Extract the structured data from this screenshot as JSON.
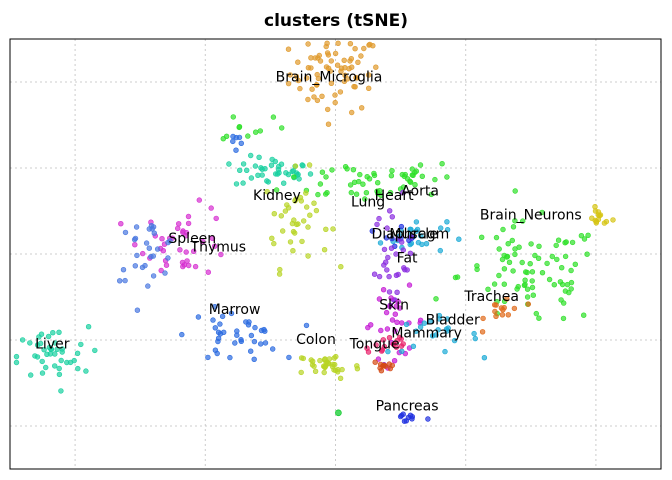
{
  "chart_data": {
    "type": "scatter",
    "title": "clusters (tSNE)",
    "xlabel": "",
    "ylabel": "",
    "xlim": [
      -50,
      50
    ],
    "ylim": [
      -50,
      50
    ],
    "grid": true,
    "legend": "none",
    "x_ticks": [
      -40,
      -20,
      0,
      20,
      40
    ],
    "y_ticks": [
      -40,
      -20,
      0,
      20,
      40
    ],
    "clusters": [
      {
        "label": "Brain_Microglia",
        "color": "#e09a2c",
        "center": [
          0,
          42
        ],
        "spread": [
          3.5,
          4.5
        ],
        "count": 70,
        "label_pos": [
          -1,
          41
        ]
      },
      {
        "label": "Brain_Neurons",
        "color": "#d6c412",
        "center": [
          40.5,
          8.5
        ],
        "spread": [
          1,
          1
        ],
        "count": 14,
        "label_pos": [
          30,
          9
        ]
      },
      {
        "label": "Kidney",
        "color": "#18d0a0",
        "center": [
          -9.5,
          19
        ],
        "spread": [
          3,
          1.8
        ],
        "count": 40,
        "label_pos": [
          -9,
          13.5
        ]
      },
      {
        "label": "Heart",
        "color": "#2ee028",
        "center": [
          4,
          17
        ],
        "spread": [
          6,
          2.5
        ],
        "count": 40,
        "label_pos": [
          9,
          13.5
        ]
      },
      {
        "label": "Aorta",
        "color": "#2ee028",
        "center": [
          12,
          18
        ],
        "spread": [
          3,
          2
        ],
        "count": 14,
        "label_pos": [
          13,
          14.5
        ]
      },
      {
        "label": "Lung",
        "color": "#b8d425",
        "center": [
          -6,
          8
        ],
        "spread": [
          2.5,
          5.5
        ],
        "count": 38,
        "label_pos": [
          5,
          12
        ]
      },
      {
        "label": "Diaphragm",
        "color": "#1aaad6",
        "center": [
          12,
          4
        ],
        "spread": [
          2.5,
          2
        ],
        "count": 24,
        "label_pos": [
          11.5,
          4.5
        ]
      },
      {
        "label": "Muscle",
        "color": "#2030e0",
        "center": [
          10,
          5
        ],
        "spread": [
          1.5,
          1.5
        ],
        "count": 8,
        "label_pos": [
          12,
          4.5
        ]
      },
      {
        "label": "Fat",
        "color": "#8a2ee0",
        "center": [
          9,
          -2
        ],
        "spread": [
          1.5,
          7
        ],
        "count": 32,
        "label_pos": [
          11,
          -1
        ]
      },
      {
        "label": "Skin",
        "color": "#c418d4",
        "center": [
          9,
          -16
        ],
        "spread": [
          2.5,
          4
        ],
        "count": 28,
        "label_pos": [
          9,
          -12
        ]
      },
      {
        "label": "Bladder",
        "color": "#1aaad6",
        "center": [
          15,
          -19
        ],
        "spread": [
          3.5,
          2
        ],
        "count": 22,
        "label_pos": [
          18,
          -15.5
        ]
      },
      {
        "label": "Mammary",
        "color": "#e8206a",
        "center": [
          8,
          -21
        ],
        "spread": [
          2,
          1.5
        ],
        "count": 16,
        "label_pos": [
          14,
          -18.5
        ]
      },
      {
        "label": "Tongue",
        "color": "#d44a14",
        "center": [
          7.5,
          -26
        ],
        "spread": [
          1,
          1
        ],
        "count": 10,
        "label_pos": [
          6,
          -21
        ]
      },
      {
        "label": "Trachea",
        "color": "#2ee028",
        "center": [
          30,
          -5
        ],
        "spread": [
          5.5,
          6
        ],
        "count": 85,
        "label_pos": [
          24,
          -10
        ]
      },
      {
        "label": "Trachea_b",
        "color": "#e06a1a",
        "center": [
          26,
          -13
        ],
        "spread": [
          1.5,
          2
        ],
        "count": 14,
        "label_pos": null
      },
      {
        "label": "Spleen",
        "color": "#d62ed0",
        "center": [
          -23,
          3
        ],
        "spread": [
          3.5,
          4
        ],
        "count": 40,
        "label_pos": [
          -22,
          3.5
        ]
      },
      {
        "label": "Thymus",
        "color": "#4a78e0",
        "center": [
          -29,
          1
        ],
        "spread": [
          2.5,
          3.5
        ],
        "count": 28,
        "label_pos": [
          -18,
          1.5
        ]
      },
      {
        "label": "Marrow",
        "color": "#2a6ae0",
        "center": [
          -15.5,
          -19
        ],
        "spread": [
          3.5,
          3
        ],
        "count": 38,
        "label_pos": [
          -15.5,
          -13
        ]
      },
      {
        "label": "Liver",
        "color": "#18d0a0",
        "center": [
          -44,
          -24
        ],
        "spread": [
          3,
          3.5
        ],
        "count": 42,
        "label_pos": [
          -43.5,
          -21
        ]
      },
      {
        "label": "Colon",
        "color": "#b8d425",
        "center": [
          -1,
          -26
        ],
        "spread": [
          2.5,
          1.6
        ],
        "count": 34,
        "label_pos": [
          -3,
          -20
        ]
      },
      {
        "label": "Pancreas",
        "color": "#2030e0",
        "center": [
          11,
          -38
        ],
        "spread": [
          1.5,
          0.6
        ],
        "count": 10,
        "label_pos": [
          11,
          -35.5
        ]
      },
      {
        "label": "Pancreas_b",
        "color": "#00c820",
        "center": [
          0.5,
          -37
        ],
        "spread": [
          0.3,
          0.3
        ],
        "count": 1,
        "label_pos": null
      },
      {
        "label": "Upper_green",
        "color": "#2ee028",
        "center": [
          -13,
          30
        ],
        "spread": [
          3,
          2
        ],
        "count": 10,
        "label_pos": null
      },
      {
        "label": "Upper_blue",
        "color": "#2a6ae0",
        "center": [
          -15,
          27
        ],
        "spread": [
          1.5,
          1
        ],
        "count": 6,
        "label_pos": null
      }
    ]
  }
}
